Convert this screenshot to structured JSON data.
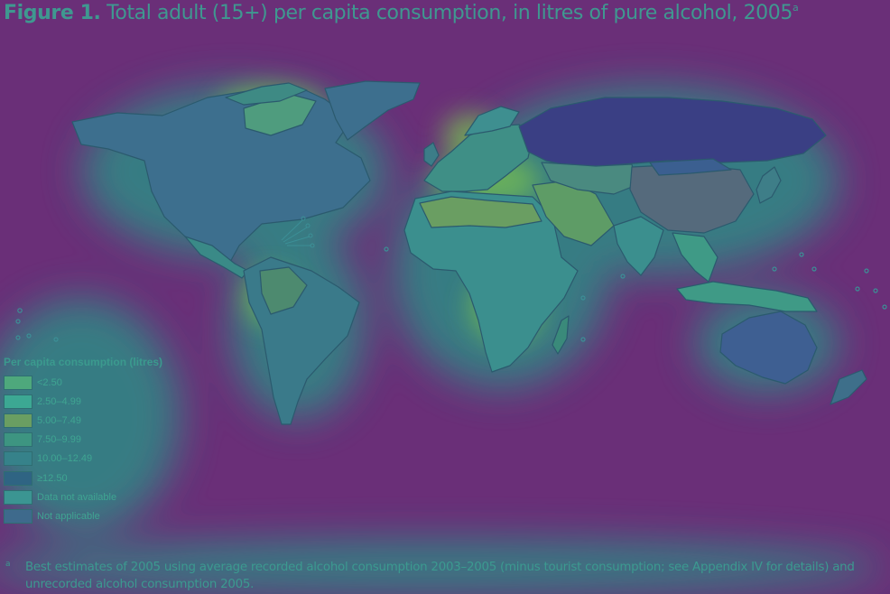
{
  "figure": {
    "label": "Figure 1.",
    "title": "Total adult (15+) per capita consumption, in litres of pure alcohol, 2005",
    "superscript": "a"
  },
  "legend": {
    "title": "Per capita consumption (litres)",
    "items": [
      {
        "label": "<2.50",
        "color": "#4ea87c"
      },
      {
        "label": "2.50–4.99",
        "color": "#3ca893"
      },
      {
        "label": "5.00–7.49",
        "color": "#6a9e62"
      },
      {
        "label": "7.50–9.99",
        "color": "#3d9581"
      },
      {
        "label": "10.00–12.49",
        "color": "#36828a"
      },
      {
        "label": "≥12.50",
        "color": "#2f6483"
      },
      {
        "label": "Data not available",
        "color": "#3b9592"
      },
      {
        "label": "Not applicable",
        "color": "#3e6a8c"
      }
    ]
  },
  "footnote": {
    "marker": "a",
    "text": "Best estimates of 2005 using average recorded alcohol consumption 2003–2005 (minus tourist consumption; see Appendix IV for details) and unrecorded alcohol consumption 2005."
  },
  "colors": {
    "background": "#6a2f78",
    "accent_text": "#3f9890"
  }
}
